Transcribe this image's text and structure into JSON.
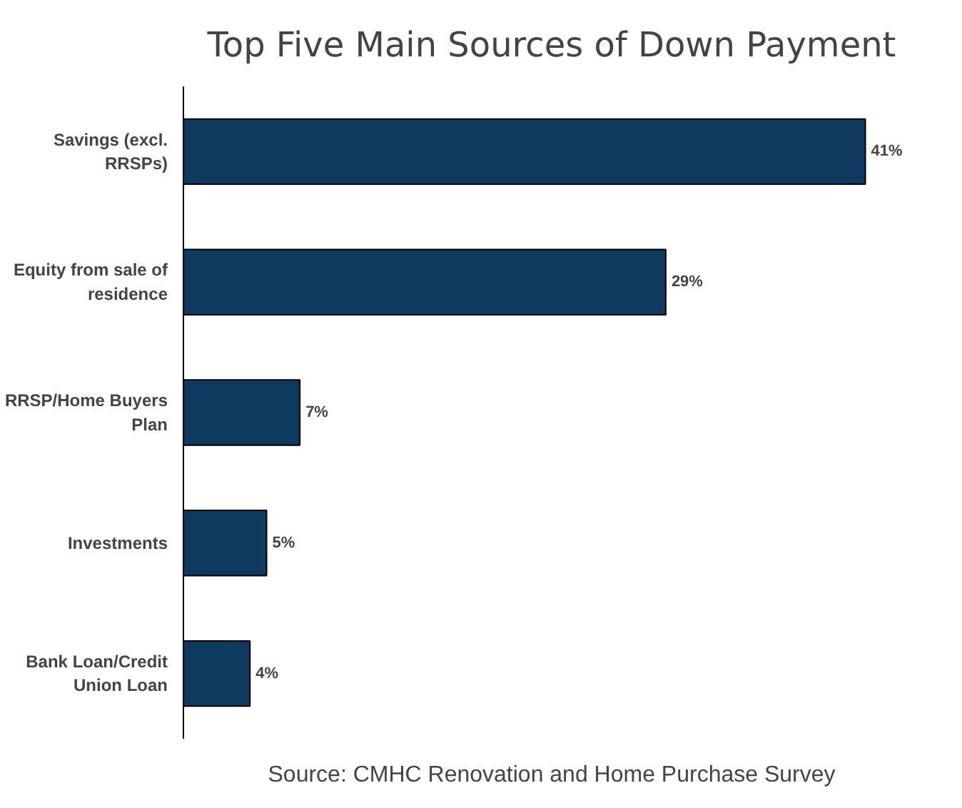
{
  "chart_data": {
    "type": "bar",
    "orientation": "horizontal",
    "title": "Top Five Main Sources of Down Payment",
    "categories": [
      "Savings (excl. RRSPs)",
      "Equity from sale of residence",
      "RRSP/Home Buyers Plan",
      "Investments",
      "Bank Loan/Credit Union Loan"
    ],
    "values": [
      41,
      29,
      7,
      5,
      4
    ],
    "value_labels": [
      "41%",
      "29%",
      "7%",
      "5%",
      "4%"
    ],
    "color": "#0f3a5f",
    "grid": false,
    "annotations": [
      "Source: CMHC Renovation and Home Purchase Survey"
    ]
  }
}
